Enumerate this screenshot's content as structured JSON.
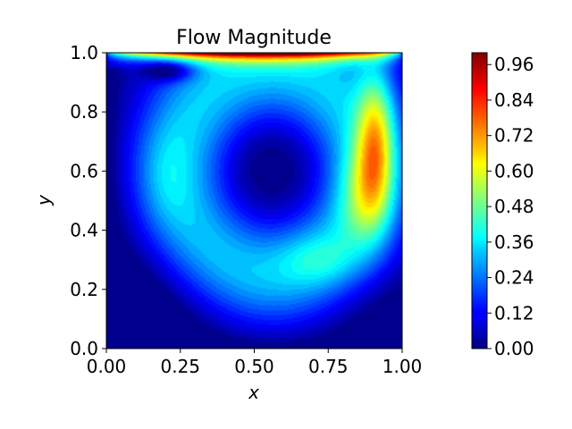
{
  "chart_data": {
    "type": "heatmap",
    "title": "Flow Magnitude",
    "xlabel": "x",
    "ylabel": "y",
    "xlim": [
      0.0,
      1.0
    ],
    "ylim": [
      0.0,
      1.0
    ],
    "x_ticks": [
      "0.00",
      "0.25",
      "0.50",
      "0.75",
      "1.00"
    ],
    "y_ticks": [
      "0.0",
      "0.2",
      "0.4",
      "0.6",
      "0.8",
      "1.0"
    ],
    "colormap": "jet",
    "colorbar": {
      "range": [
        0.0,
        1.0
      ],
      "ticks": [
        "0.00",
        "0.12",
        "0.24",
        "0.36",
        "0.48",
        "0.60",
        "0.72",
        "0.84",
        "0.96"
      ],
      "placement": "right"
    },
    "grid": false,
    "features": [
      {
        "x": 0.56,
        "y": 0.6,
        "value": 0.0
      },
      {
        "x": 0.2,
        "y": 0.58,
        "value": 0.3
      },
      {
        "x": 0.92,
        "y": 0.75,
        "value": 0.62
      },
      {
        "x": 0.7,
        "y": 0.3,
        "value": 0.36
      },
      {
        "x": 0.5,
        "y": 0.99,
        "value": 0.98
      },
      {
        "x": 0.2,
        "y": 0.94,
        "value": 0.06
      }
    ]
  }
}
